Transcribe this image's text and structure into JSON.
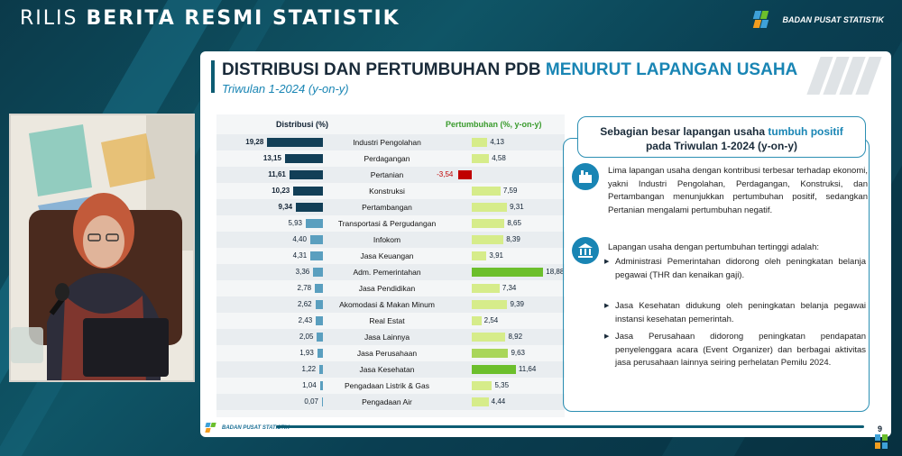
{
  "header": {
    "title_light": "RILIS",
    "title_bold": "BERITA RESMI STATISTIK",
    "org_name": "BADAN PUSAT STATISTIK"
  },
  "colors": {
    "dist_dark": "#123f57",
    "dist_light": "#5a9fbf",
    "growth_light": "#d6ec8a",
    "growth_mid": "#a9d65a",
    "growth_strong": "#6cbf2c",
    "negative": "#c00000",
    "accent": "#1985b4"
  },
  "slide": {
    "title_main": "DISTRIBUSI DAN PERTUMBUHAN PDB ",
    "title_accent": "MENURUT LAPANGAN USAHA",
    "subtitle": "Triwulan 1-2024 (y-on-y)",
    "page_number": "9",
    "footer_org": "BADAN PUSAT STATISTIK"
  },
  "chart_data": {
    "type": "bar",
    "dist_header": "Distribusi (%)",
    "growth_header": "Pertumbuhan (%, y-on-y)",
    "categories": [
      "Industri Pengolahan",
      "Perdagangan",
      "Pertanian",
      "Konstruksi",
      "Pertambangan",
      "Transportasi & Pergudangan",
      "Infokom",
      "Jasa Keuangan",
      "Adm. Pemerintahan",
      "Jasa Pendidikan",
      "Akomodasi & Makan Minum",
      "Real Estat",
      "Jasa Lainnya",
      "Jasa Perusahaan",
      "Jasa Kesehatan",
      "Pengadaan Listrik & Gas",
      "Pengadaan Air"
    ],
    "series": [
      {
        "name": "Distribusi (%)",
        "values": [
          19.28,
          13.15,
          11.61,
          10.23,
          9.34,
          5.93,
          4.4,
          4.31,
          3.36,
          2.78,
          2.62,
          2.43,
          2.05,
          1.93,
          1.22,
          1.04,
          0.07
        ],
        "labels": [
          "19,28",
          "13,15",
          "11,61",
          "10,23",
          "9,34",
          "5,93",
          "4,40",
          "4,31",
          "3,36",
          "2,78",
          "2,62",
          "2,43",
          "2,05",
          "1,93",
          "1,22",
          "1,04",
          "0,07"
        ]
      },
      {
        "name": "Pertumbuhan (%, y-on-y)",
        "values": [
          4.13,
          4.58,
          -3.54,
          7.59,
          9.31,
          8.65,
          8.39,
          3.91,
          18.88,
          7.34,
          9.39,
          2.54,
          8.92,
          9.63,
          11.64,
          5.35,
          4.44
        ],
        "labels": [
          "4,13",
          "4,58",
          "-3,54",
          "7,59",
          "9,31",
          "8,65",
          "8,39",
          "3,91",
          "18,88",
          "7,34",
          "9,39",
          "2,54",
          "8,92",
          "9,63",
          "11,64",
          "5,35",
          "4,44"
        ]
      }
    ],
    "ylim_dist": [
      0,
      20
    ],
    "ylim_growth": [
      -5,
      20
    ]
  },
  "info": {
    "head_line1_pre": "Sebagian besar lapangan usaha ",
    "head_line1_accent": "tumbuh positif",
    "head_line2": "pada Triwulan 1-2024 (y-on-y)",
    "para1": "Lima lapangan usaha dengan kontribusi terbesar terhadap ekonomi, yakni Industri Pengolahan, Perdagangan, Konstruksi, dan Pertambangan menunjukkan pertumbuhan positif, sedangkan Pertanian mengalami pertumbuhan negatif.",
    "para2": "Lapangan usaha dengan pertumbuhan tertinggi adalah:",
    "bullet1": "Administrasi Pemerintahan didorong oleh peningkatan belanja pegawai (THR dan kenaikan gaji).",
    "bullet2": "Jasa Kesehatan didukung oleh peningkatan belanja pegawai instansi kesehatan pemerintah.",
    "bullet3": "Jasa Perusahaan didorong peningkatan pendapatan penyelenggara acara (Event Organizer) dan berbagai aktivitas jasa perusahaan lainnya seiring perhelatan Pemilu 2024.",
    "icon1": "factory-icon",
    "icon2": "government-building-icon"
  }
}
